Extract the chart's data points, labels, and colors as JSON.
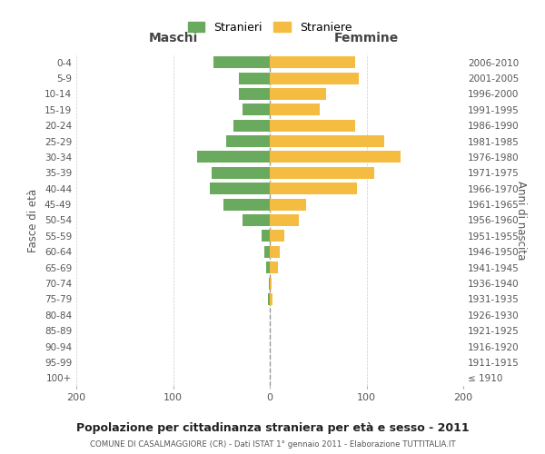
{
  "age_groups": [
    "100+",
    "95-99",
    "90-94",
    "85-89",
    "80-84",
    "75-79",
    "70-74",
    "65-69",
    "60-64",
    "55-59",
    "50-54",
    "45-49",
    "40-44",
    "35-39",
    "30-34",
    "25-29",
    "20-24",
    "15-19",
    "10-14",
    "5-9",
    "0-4"
  ],
  "birth_years": [
    "≤ 1910",
    "1911-1915",
    "1916-1920",
    "1921-1925",
    "1926-1930",
    "1931-1935",
    "1936-1940",
    "1941-1945",
    "1946-1950",
    "1951-1955",
    "1956-1960",
    "1961-1965",
    "1966-1970",
    "1971-1975",
    "1976-1980",
    "1981-1985",
    "1986-1990",
    "1991-1995",
    "1996-2000",
    "2001-2005",
    "2006-2010"
  ],
  "maschi": [
    0,
    0,
    0,
    0,
    0,
    2,
    1,
    4,
    6,
    8,
    28,
    48,
    62,
    60,
    75,
    45,
    38,
    28,
    32,
    32,
    58
  ],
  "femmine": [
    0,
    0,
    0,
    0,
    0,
    3,
    2,
    8,
    10,
    15,
    30,
    38,
    90,
    108,
    135,
    118,
    88,
    52,
    58,
    92,
    88
  ],
  "maschi_color": "#6aaa5e",
  "femmine_color": "#f5bc42",
  "background_color": "#ffffff",
  "grid_color": "#cccccc",
  "title": "Popolazione per cittadinanza straniera per età e sesso - 2011",
  "subtitle": "COMUNE DI CASALMAGGIORE (CR) - Dati ISTAT 1° gennaio 2011 - Elaborazione TUTTITALIA.IT",
  "left_label": "Maschi",
  "right_label": "Femmine",
  "ylabel_left": "Fasce di età",
  "ylabel_right": "Anni di nascita",
  "legend_maschi": "Stranieri",
  "legend_femmine": "Straniere",
  "xlim": 200,
  "bar_height": 0.75
}
